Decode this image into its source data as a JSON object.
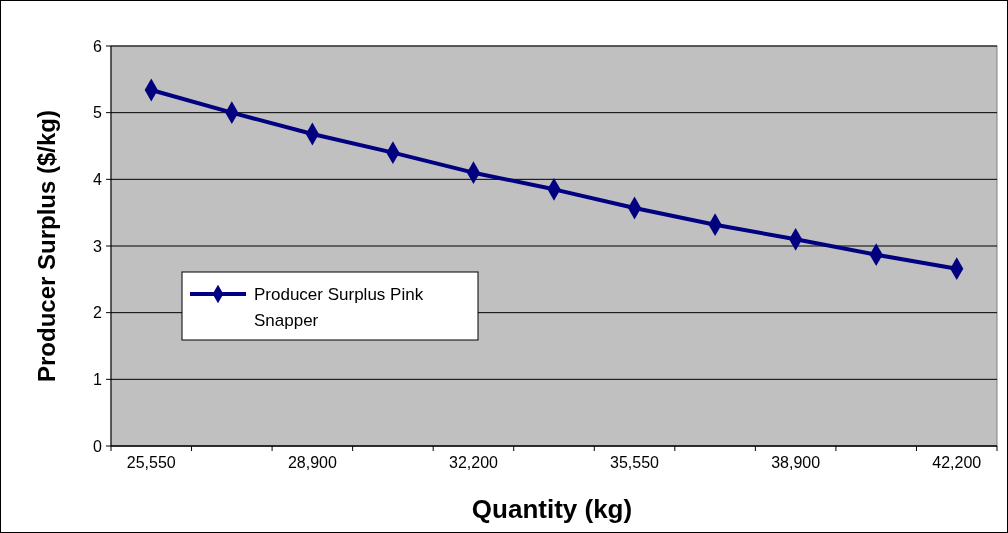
{
  "chart_data": {
    "type": "line",
    "xlabel": "Quantity (kg)",
    "ylabel": "Producer Surplus ($/kg)",
    "categories": [
      "25,550",
      null,
      "28,900",
      null,
      "32,200",
      null,
      "35,550",
      null,
      "38,900",
      null,
      "42,200"
    ],
    "series": [
      {
        "name": "Producer Surplus Pink Snapper",
        "color": "#000080",
        "values": [
          5.34,
          5.0,
          4.68,
          4.4,
          4.1,
          3.85,
          3.57,
          3.32,
          3.1,
          2.87,
          2.66
        ]
      }
    ],
    "ylim": [
      0,
      6
    ],
    "yticks": [
      0,
      1,
      2,
      3,
      4,
      5,
      6
    ],
    "grid": "y",
    "legend": "left",
    "marker": "diamond",
    "line_style": "solid"
  }
}
